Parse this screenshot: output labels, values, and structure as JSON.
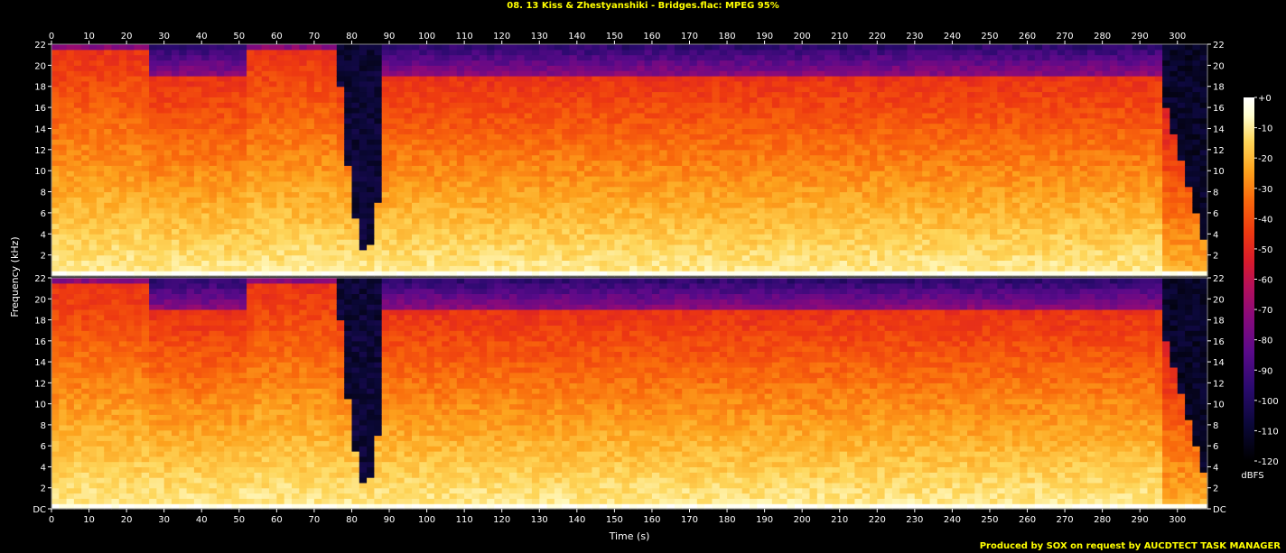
{
  "title": "08. 13 Kiss & Zhestyanshiki - Bridges.flac: MPEG 95%",
  "footer": "Produced by SOX on request by AUCDTECT TASK MANAGER",
  "colors": {
    "text_yellow": "#ffff00",
    "axis": "#ffffff",
    "palette": [
      "#000000",
      "#0b0838",
      "#2a0a6e",
      "#5a0a8a",
      "#8a0a7a",
      "#b5105a",
      "#d81b2b",
      "#ee3a10",
      "#f96a0c",
      "#fda41e",
      "#fed65a",
      "#ffffd0",
      "#ffffff"
    ]
  },
  "chart_data": {
    "type": "heatmap",
    "title": "08. 13 Kiss & Zhestyanshiki - Bridges.flac: MPEG 95%",
    "xlabel": "Time (s)",
    "ylabel": "Frequency (kHz)",
    "xlim": [
      0,
      308
    ],
    "ylim": [
      0,
      22
    ],
    "x_ticks": [
      "0",
      "10",
      "20",
      "30",
      "40",
      "50",
      "60",
      "70",
      "80",
      "90",
      "100",
      "110",
      "120",
      "130",
      "140",
      "150",
      "160",
      "170",
      "180",
      "190",
      "200",
      "210",
      "220",
      "230",
      "240",
      "250",
      "260",
      "270",
      "280",
      "290",
      "300"
    ],
    "y_ticks": [
      "DC",
      "2",
      "4",
      "6",
      "8",
      "10",
      "12",
      "14",
      "16",
      "18",
      "20",
      "22"
    ],
    "channels": 2,
    "colorbar": {
      "label": "dBFS",
      "range": [
        -120,
        0
      ],
      "ticks": [
        "+0",
        "-10",
        "-20",
        "-30",
        "-40",
        "-50",
        "-60",
        "-70",
        "-80",
        "-90",
        "-100",
        "-110",
        "-120"
      ]
    },
    "notes": {
      "energy_cutoff_khz": 19,
      "dropout_region_s": [
        76,
        89
      ],
      "fade_out_start_s": 297
    }
  }
}
